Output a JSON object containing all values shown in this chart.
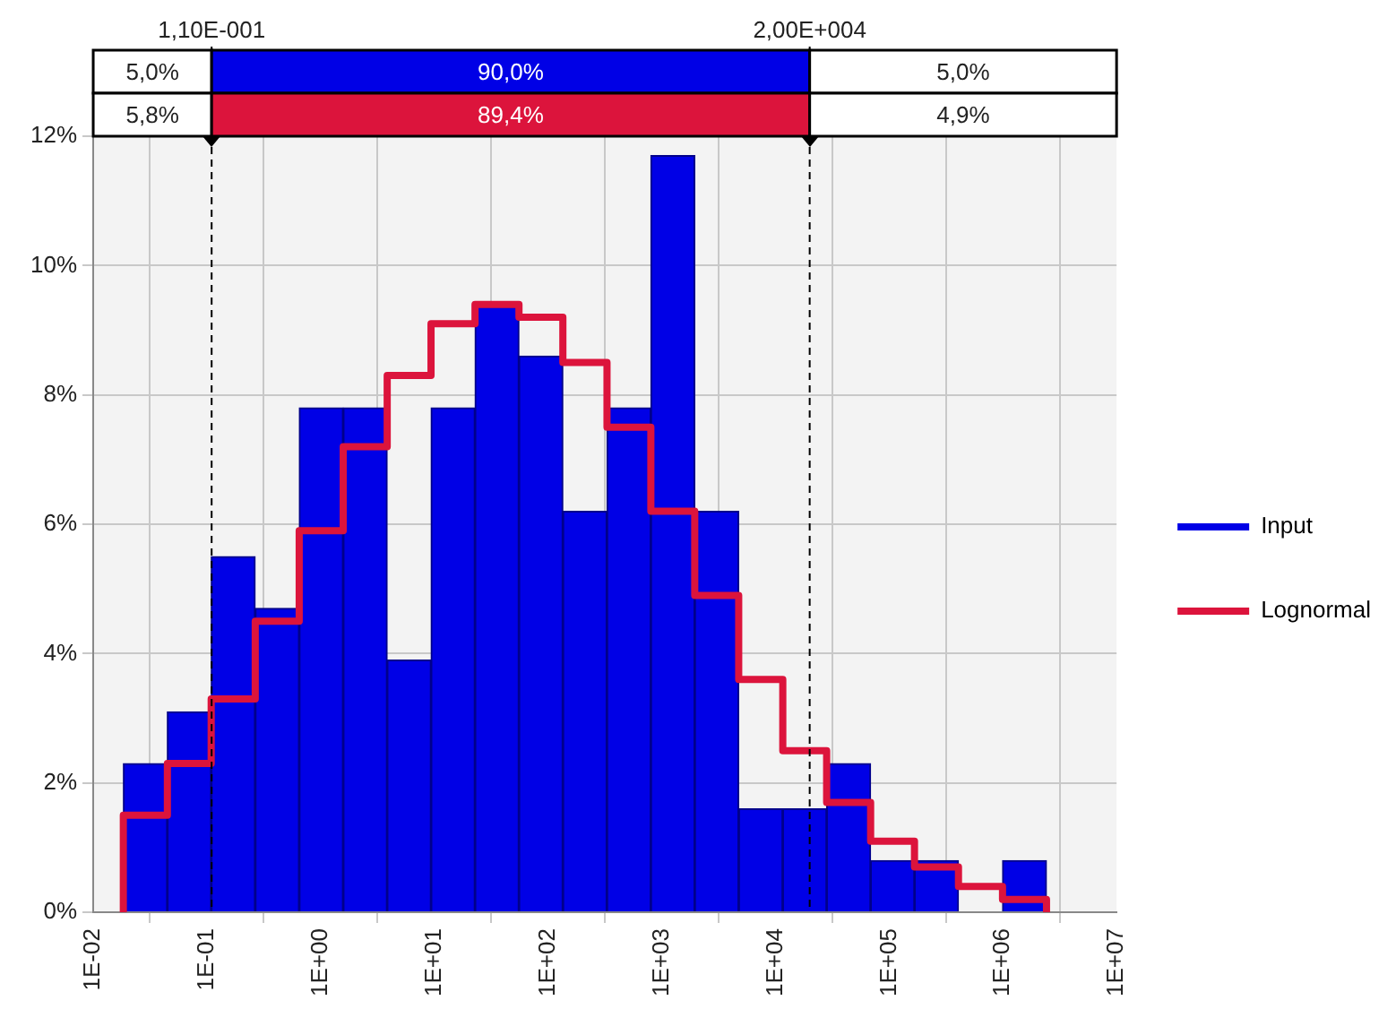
{
  "chart_data": {
    "type": "histogram",
    "bins": [
      0.0184,
      0.0449,
      0.109,
      0.266,
      0.648,
      1.58,
      3.85,
      9.35,
      22.8,
      55.5,
      135,
      330,
      802,
      1950,
      4750,
      11600,
      28200,
      68700,
      167000,
      407000,
      993000,
      2420000
    ],
    "series": [
      {
        "name": "Input",
        "color": "#0000e6",
        "values": [
          2.3,
          3.1,
          5.5,
          4.7,
          7.8,
          7.8,
          3.9,
          7.8,
          9.4,
          8.6,
          6.2,
          7.8,
          11.7,
          6.2,
          1.6,
          1.6,
          2.3,
          0.8,
          0.8,
          0,
          0.8
        ]
      },
      {
        "name": "Lognormal",
        "type": "step",
        "color": "#dc143c",
        "x": [
          0.0184,
          0.0184,
          0.0449,
          0.109,
          0.266,
          0.648,
          1.58,
          3.85,
          9.35,
          22.8,
          55.5,
          135,
          330,
          802,
          1950,
          4750,
          11600,
          28200,
          68700,
          167000,
          407000,
          993000,
          2420000,
          2420000
        ],
        "values": [
          0,
          1.5,
          2.3,
          3.3,
          4.5,
          5.9,
          7.2,
          8.3,
          9.1,
          9.4,
          9.2,
          8.5,
          7.5,
          6.2,
          4.9,
          3.6,
          2.5,
          1.7,
          1.1,
          0.7,
          0.4,
          0.2,
          0.2,
          0
        ]
      }
    ],
    "log": "x",
    "xlim": [
      0.01,
      10000000
    ],
    "xticks": [
      {
        "value": 0.01,
        "label": "1E-02"
      },
      {
        "value": 0.1,
        "label": "1E-01"
      },
      {
        "value": 1,
        "label": "1E+00"
      },
      {
        "value": 10,
        "label": "1E+01"
      },
      {
        "value": 100,
        "label": "1E+02"
      },
      {
        "value": 1000,
        "label": "1E+03"
      },
      {
        "value": 10000,
        "label": "1E+04"
      },
      {
        "value": 100000,
        "label": "1E+05"
      },
      {
        "value": 1000000,
        "label": "1E+06"
      },
      {
        "value": 10000000,
        "label": "1E+07"
      }
    ],
    "ylim": [
      0,
      12
    ],
    "yticks": [
      {
        "value": 0,
        "label": "0%"
      },
      {
        "value": 2,
        "label": "2%"
      },
      {
        "value": 4,
        "label": "4%"
      },
      {
        "value": 6,
        "label": "6%"
      },
      {
        "value": 8,
        "label": "8%"
      },
      {
        "value": 10,
        "label": "10%"
      },
      {
        "value": 12,
        "label": "12%"
      }
    ],
    "ref_lines": [
      {
        "axis": "x",
        "value": 0.11,
        "label": "1,10E-001",
        "color": "#000000",
        "line_style": "dashed"
      },
      {
        "axis": "x",
        "value": 20000,
        "label": "2,00E+004",
        "color": "#000000",
        "line_style": "dashed"
      }
    ],
    "annotations": [
      "5,0%",
      "90,0%",
      "5,0%",
      "5,8%",
      "89,4%",
      "4,9%"
    ],
    "grid": true,
    "legend": "right"
  }
}
